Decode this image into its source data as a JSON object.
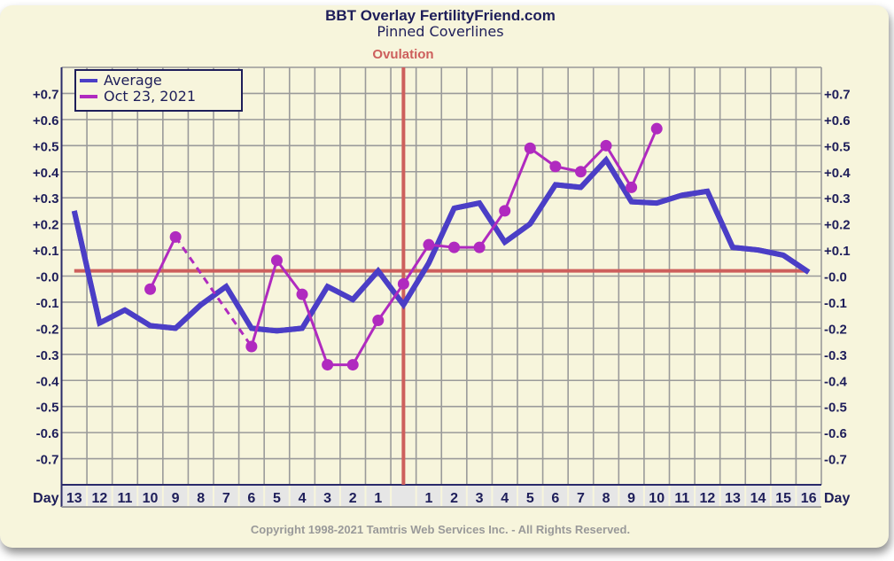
{
  "chart_data": {
    "type": "line",
    "title": "BBT Overlay FertilityFriend.com",
    "subtitle": "Pinned Coverlines",
    "ovulation_label": "Ovulation",
    "xlabel": "Day",
    "categories": [
      "13",
      "12",
      "11",
      "10",
      "9",
      "8",
      "7",
      "6",
      "5",
      "4",
      "3",
      "2",
      "1",
      "",
      "1",
      "2",
      "3",
      "4",
      "5",
      "6",
      "7",
      "8",
      "9",
      "10",
      "11",
      "12",
      "13",
      "14",
      "15",
      "16"
    ],
    "yticks": [
      "+0.7",
      "+0.6",
      "+0.5",
      "+0.4",
      "+0.3",
      "+0.2",
      "+0.1",
      "-0.0",
      "-0.1",
      "-0.2",
      "-0.3",
      "-0.4",
      "-0.5",
      "-0.6",
      "-0.7"
    ],
    "ylim": [
      -0.8,
      0.8
    ],
    "grid": true,
    "legend_placement": "top-left",
    "ovulation_index": 13,
    "coverline": 0.02,
    "series": [
      {
        "name": "Average",
        "color": "#4b3ec6",
        "values": [
          0.25,
          -0.18,
          -0.13,
          -0.19,
          -0.2,
          -0.11,
          -0.04,
          -0.2,
          -0.21,
          -0.2,
          -0.04,
          -0.09,
          0.02,
          -0.11,
          0.05,
          0.26,
          0.28,
          0.13,
          0.2,
          0.35,
          0.34,
          0.445,
          0.285,
          0.28,
          0.31,
          0.325,
          0.11,
          0.1,
          0.08,
          0.015
        ]
      },
      {
        "name": "Oct 23, 2021",
        "color": "#b02abf",
        "markers": true,
        "values": [
          null,
          null,
          null,
          -0.05,
          0.15,
          null,
          null,
          -0.27,
          0.06,
          -0.07,
          -0.34,
          -0.34,
          -0.17,
          -0.03,
          0.12,
          0.11,
          0.11,
          0.25,
          0.49,
          0.42,
          0.4,
          0.5,
          0.34,
          0.565,
          null,
          null,
          null,
          null,
          null,
          null
        ],
        "dashed_gaps": true
      }
    ],
    "coverline_color": "#cd5f5c"
  },
  "footer": "Copyright 1998-2021 Tamtris Web Services Inc. - All Rights Reserved."
}
